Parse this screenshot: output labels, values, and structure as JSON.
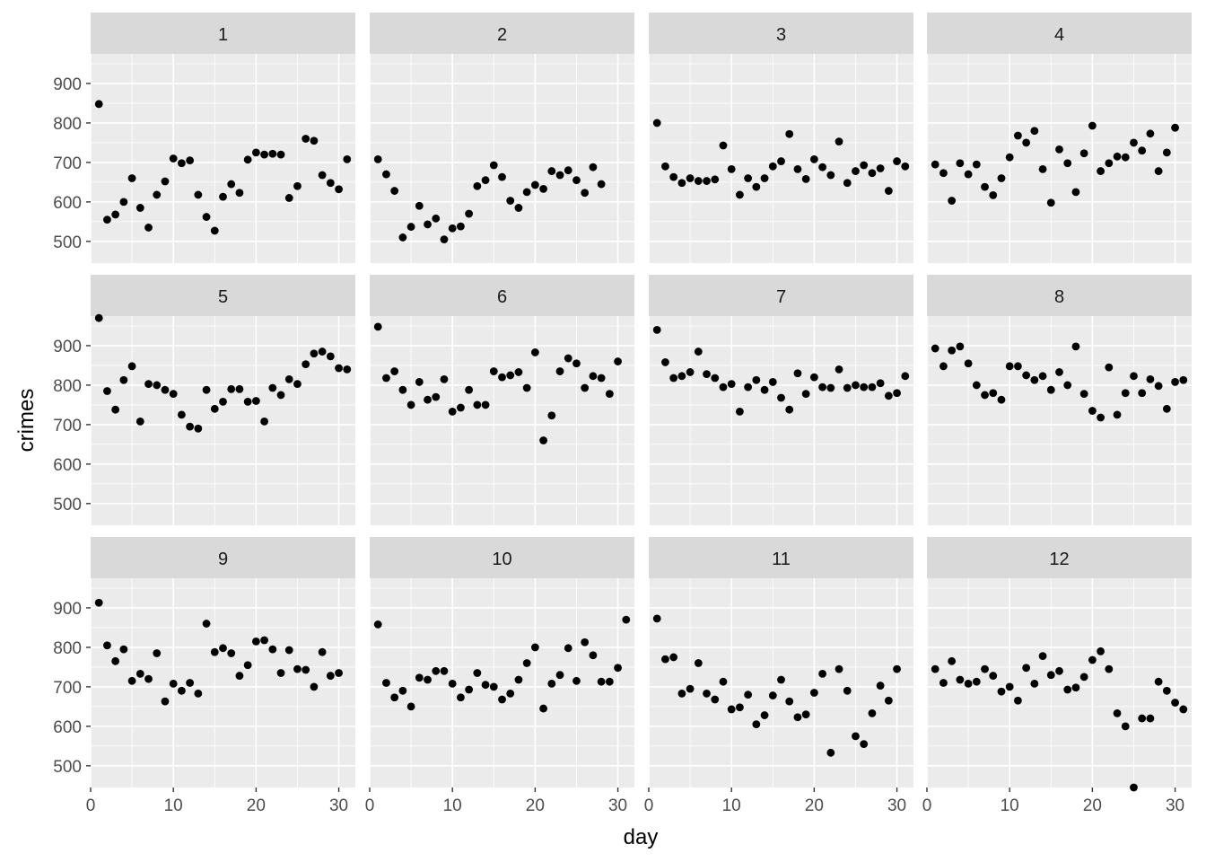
{
  "chart_data": {
    "type": "scatter",
    "facet_by": "month",
    "xlabel": "day",
    "ylabel": "crimes",
    "xlim": [
      0,
      32
    ],
    "ylim": [
      445,
      975
    ],
    "x_ticks": [
      0,
      10,
      20,
      30
    ],
    "y_ticks": [
      500,
      600,
      700,
      800,
      900
    ],
    "grid": true,
    "colors": {
      "panel_bg": "#ebebeb",
      "strip_bg": "#d9d9d9",
      "grid": "#ffffff",
      "point": "#000000"
    },
    "facets": [
      {
        "label": "1",
        "x": [
          1,
          2,
          3,
          4,
          5,
          6,
          7,
          8,
          9,
          10,
          11,
          12,
          13,
          14,
          15,
          16,
          17,
          18,
          19,
          20,
          21,
          22,
          23,
          24,
          25,
          26,
          27,
          28,
          29,
          30,
          31
        ],
        "y": [
          848,
          555,
          568,
          600,
          660,
          585,
          535,
          618,
          652,
          710,
          698,
          705,
          618,
          562,
          527,
          613,
          645,
          623,
          707,
          725,
          720,
          722,
          720,
          610,
          640,
          760,
          755,
          668,
          648,
          632,
          708
        ]
      },
      {
        "label": "2",
        "x": [
          1,
          2,
          3,
          4,
          5,
          6,
          7,
          8,
          9,
          10,
          11,
          12,
          13,
          14,
          15,
          16,
          17,
          18,
          19,
          20,
          21,
          22,
          23,
          24,
          25,
          26,
          27,
          28
        ],
        "y": [
          708,
          670,
          628,
          510,
          537,
          590,
          543,
          558,
          505,
          533,
          538,
          570,
          640,
          655,
          693,
          663,
          603,
          585,
          625,
          643,
          633,
          678,
          668,
          680,
          655,
          623,
          688,
          645
        ]
      },
      {
        "label": "3",
        "x": [
          1,
          2,
          3,
          4,
          5,
          6,
          7,
          8,
          9,
          10,
          11,
          12,
          13,
          14,
          15,
          16,
          17,
          18,
          19,
          20,
          21,
          22,
          23,
          24,
          25,
          26,
          27,
          28,
          29,
          30,
          31
        ],
        "y": [
          800,
          690,
          663,
          648,
          660,
          653,
          653,
          657,
          743,
          683,
          618,
          660,
          638,
          660,
          690,
          703,
          772,
          683,
          658,
          708,
          688,
          668,
          753,
          648,
          678,
          693,
          673,
          685,
          628,
          703,
          690
        ]
      },
      {
        "label": "4",
        "x": [
          1,
          2,
          3,
          4,
          5,
          6,
          7,
          8,
          9,
          10,
          11,
          12,
          13,
          14,
          15,
          16,
          17,
          18,
          19,
          20,
          21,
          22,
          23,
          24,
          25,
          26,
          27,
          28,
          29,
          30
        ],
        "y": [
          695,
          673,
          603,
          698,
          670,
          695,
          638,
          617,
          660,
          713,
          768,
          750,
          780,
          683,
          598,
          733,
          698,
          625,
          723,
          793,
          678,
          698,
          715,
          713,
          750,
          730,
          773,
          678,
          725,
          788
        ]
      },
      {
        "label": "5",
        "x": [
          1,
          2,
          3,
          4,
          5,
          6,
          7,
          8,
          9,
          10,
          11,
          12,
          13,
          14,
          15,
          16,
          17,
          18,
          19,
          20,
          21,
          22,
          23,
          24,
          25,
          26,
          27,
          28,
          29,
          30,
          31
        ],
        "y": [
          970,
          785,
          738,
          813,
          848,
          708,
          803,
          800,
          788,
          778,
          725,
          695,
          690,
          788,
          740,
          758,
          790,
          790,
          758,
          760,
          708,
          793,
          775,
          815,
          803,
          853,
          880,
          885,
          873,
          843,
          840
        ]
      },
      {
        "label": "6",
        "x": [
          1,
          2,
          3,
          4,
          5,
          6,
          7,
          8,
          9,
          10,
          11,
          12,
          13,
          14,
          15,
          16,
          17,
          18,
          19,
          20,
          21,
          22,
          23,
          24,
          25,
          26,
          27,
          28,
          29,
          30
        ],
        "y": [
          948,
          818,
          835,
          788,
          750,
          808,
          763,
          770,
          815,
          733,
          743,
          788,
          750,
          750,
          835,
          820,
          825,
          833,
          793,
          883,
          660,
          723,
          835,
          868,
          855,
          793,
          823,
          818,
          778,
          860
        ]
      },
      {
        "label": "7",
        "x": [
          1,
          2,
          3,
          4,
          5,
          6,
          7,
          8,
          9,
          10,
          11,
          12,
          13,
          14,
          15,
          16,
          17,
          18,
          19,
          20,
          21,
          22,
          23,
          24,
          25,
          26,
          27,
          28,
          29,
          30,
          31
        ],
        "y": [
          940,
          858,
          818,
          823,
          833,
          885,
          828,
          818,
          795,
          803,
          733,
          795,
          813,
          788,
          808,
          768,
          738,
          830,
          778,
          820,
          795,
          793,
          840,
          793,
          800,
          795,
          795,
          805,
          773,
          780,
          823
        ]
      },
      {
        "label": "8",
        "x": [
          1,
          2,
          3,
          4,
          5,
          6,
          7,
          8,
          9,
          10,
          11,
          12,
          13,
          14,
          15,
          16,
          17,
          18,
          19,
          20,
          21,
          22,
          23,
          24,
          25,
          26,
          27,
          28,
          29,
          30,
          31
        ],
        "y": [
          893,
          848,
          888,
          898,
          855,
          800,
          775,
          780,
          763,
          848,
          848,
          825,
          813,
          823,
          788,
          833,
          800,
          898,
          778,
          735,
          718,
          845,
          725,
          780,
          823,
          780,
          815,
          798,
          740,
          808,
          813
        ]
      },
      {
        "label": "9",
        "x": [
          1,
          2,
          3,
          4,
          5,
          6,
          7,
          8,
          9,
          10,
          11,
          12,
          13,
          14,
          15,
          16,
          17,
          18,
          19,
          20,
          21,
          22,
          23,
          24,
          25,
          26,
          27,
          28,
          29,
          30
        ],
        "y": [
          913,
          805,
          765,
          795,
          715,
          733,
          720,
          785,
          663,
          708,
          690,
          710,
          683,
          860,
          788,
          798,
          785,
          728,
          755,
          815,
          818,
          795,
          735,
          793,
          745,
          743,
          700,
          788,
          728,
          735
        ]
      },
      {
        "label": "10",
        "x": [
          1,
          2,
          3,
          4,
          5,
          6,
          7,
          8,
          9,
          10,
          11,
          12,
          13,
          14,
          15,
          16,
          17,
          18,
          19,
          20,
          21,
          22,
          23,
          24,
          25,
          26,
          27,
          28,
          29,
          30,
          31
        ],
        "y": [
          858,
          710,
          673,
          690,
          650,
          723,
          718,
          740,
          740,
          708,
          673,
          693,
          735,
          705,
          700,
          668,
          683,
          718,
          760,
          800,
          645,
          708,
          730,
          798,
          715,
          813,
          780,
          713,
          713,
          748,
          870
        ]
      },
      {
        "label": "11",
        "x": [
          1,
          2,
          3,
          4,
          5,
          6,
          7,
          8,
          9,
          10,
          11,
          12,
          13,
          14,
          15,
          16,
          17,
          18,
          19,
          20,
          21,
          22,
          23,
          24,
          25,
          26,
          27,
          28,
          29,
          30
        ],
        "y": [
          873,
          770,
          775,
          683,
          695,
          760,
          683,
          668,
          713,
          643,
          648,
          680,
          605,
          628,
          678,
          718,
          663,
          623,
          630,
          685,
          733,
          533,
          745,
          690,
          575,
          555,
          633,
          703,
          665,
          745
        ]
      },
      {
        "label": "12",
        "x": [
          1,
          2,
          3,
          4,
          5,
          6,
          7,
          8,
          9,
          10,
          11,
          12,
          13,
          14,
          15,
          16,
          17,
          18,
          19,
          20,
          21,
          22,
          23,
          24,
          25,
          26,
          27,
          28,
          29,
          30,
          31
        ],
        "y": [
          745,
          710,
          765,
          718,
          708,
          713,
          745,
          728,
          688,
          700,
          665,
          748,
          708,
          778,
          730,
          740,
          693,
          698,
          725,
          768,
          790,
          745,
          633,
          600,
          445,
          620,
          620,
          713,
          690,
          660,
          643
        ]
      }
    ]
  }
}
